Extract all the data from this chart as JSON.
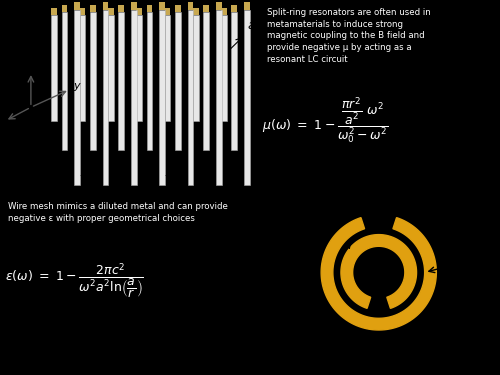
{
  "bg_color": "#000000",
  "top_left_bg": "#ffffff",
  "top_right_bg": "#111111",
  "bottom_left_bg": "#000000",
  "bottom_right_bg": "#ffffff",
  "wire_color": "#e8e8e8",
  "wire_edge_color": "#aaaaaa",
  "wire_tip_color": "#c8a850",
  "ring_color": "#e0a010",
  "text_color_white": "#ffffff",
  "text_color_black": "#000000",
  "split_ring_text": "Split-ring resonators are often used in\nmetamaterials to induce strong\nmagnetic coupling to the B field and\nprovide negative μ by acting as a\nresonant LC circuit",
  "wire_mesh_text": "Wire mesh mimics a diluted metal and can provide\nnegative ε with proper geometrical choices",
  "front_wires_x": [
    3.0,
    4.1,
    5.2,
    6.3,
    7.4,
    8.5,
    9.6
  ],
  "mid_wires_x": [
    2.5,
    3.6,
    4.7,
    5.8,
    6.9,
    8.0,
    9.1
  ],
  "back_wires_x": [
    2.1,
    3.2,
    4.3,
    5.4,
    6.5,
    7.6,
    8.7
  ]
}
